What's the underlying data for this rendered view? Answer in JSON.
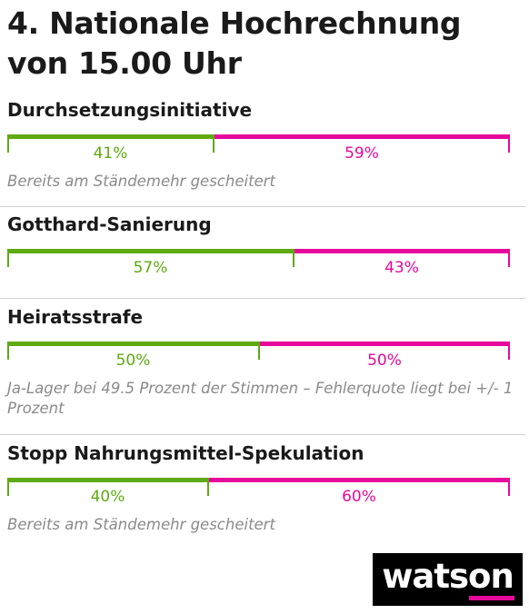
{
  "chart_data": {
    "type": "bar",
    "title": "4. Nationale Hochrechnung von 15.00 Uhr",
    "categories": [
      "Durchsetzungsinitiative",
      "Gotthard-Sanierung",
      "Heiratsstrafe",
      "Stopp Nahrungsmittel-Spekulation"
    ],
    "series": [
      {
        "values": [
          41,
          57,
          50,
          40
        ],
        "labels": [
          "41%",
          "57%",
          "50%",
          "40%"
        ]
      },
      {
        "values": [
          59,
          43,
          50,
          60
        ],
        "labels": [
          "59%",
          "43%",
          "50%",
          "60%"
        ]
      }
    ],
    "notes": [
      "Bereits am Ständemehr gescheitert",
      "",
      "Ja-Lager bei 49.5 Prozent der Stimmen – Fehlerquote liegt bei +/- 1 Prozent",
      "Bereits am Ständemehr gescheitert"
    ],
    "ylim": [
      0,
      100
    ]
  },
  "colors": {
    "yes": "#5faa11",
    "no": "#e6099b",
    "logo_accent": "#e6099b"
  },
  "brand": {
    "logo_text": "watson"
  }
}
